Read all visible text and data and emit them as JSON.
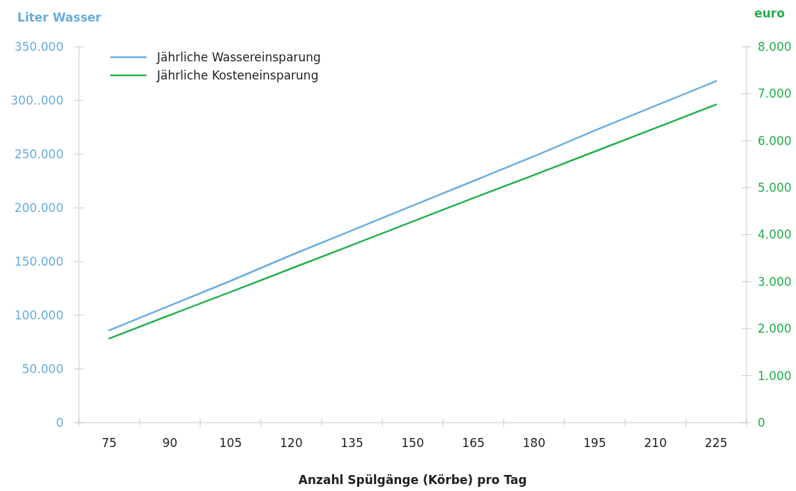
{
  "chart_data": {
    "type": "line",
    "xlabel": "Anzahl Spülgänge (Körbe) pro Tag",
    "ylabel": "Liter Wasser",
    "y2label": "euro",
    "categories": [
      "75",
      "90",
      "105",
      "120",
      "135",
      "150",
      "165",
      "180",
      "195",
      "210",
      "225"
    ],
    "series": [
      {
        "name": "Jährliche Wassereinsparung",
        "color": "#6aade0",
        "values": [
          86000,
          109000,
          132000,
          156000,
          179000,
          202000,
          225000,
          248000,
          272000,
          295000,
          318000
        ]
      },
      {
        "name": "Jährliche Kosteneinsparung",
        "color": "#22b04b",
        "axis": "y2",
        "values": [
          1790,
          2290,
          2780,
          3280,
          3780,
          4280,
          4780,
          5270,
          5770,
          6270,
          6770
        ]
      }
    ],
    "ylim": [
      0,
      350000
    ],
    "yticks": [
      0,
      {
        "value": 50000,
        "label": "50.000"
      },
      {
        "value": 100000,
        "label": "100.000"
      },
      {
        "value": 150000,
        "label": "150.000"
      },
      {
        "value": 200000,
        "label": "200.000"
      },
      {
        "value": 250000,
        "label": "250.000"
      },
      {
        "value": 300000,
        "label": "300..000"
      },
      {
        "value": 350000,
        "label": "350.000"
      }
    ],
    "y2lim": [
      0,
      8000
    ],
    "y2ticks": [
      0,
      {
        "value": 1000,
        "label": "1.000"
      },
      {
        "value": 2000,
        "label": "2.000"
      },
      {
        "value": 3000,
        "label": "3.000"
      },
      {
        "value": 4000,
        "label": "4.000"
      },
      {
        "value": 5000,
        "label": "5.000"
      },
      {
        "value": 6000,
        "label": "6.000"
      },
      {
        "value": 7000,
        "label": "7.000"
      },
      {
        "value": 8000,
        "label": "8.000"
      }
    ],
    "legend": "top left",
    "grid": false,
    "marker": "none",
    "line_style": "solid"
  }
}
